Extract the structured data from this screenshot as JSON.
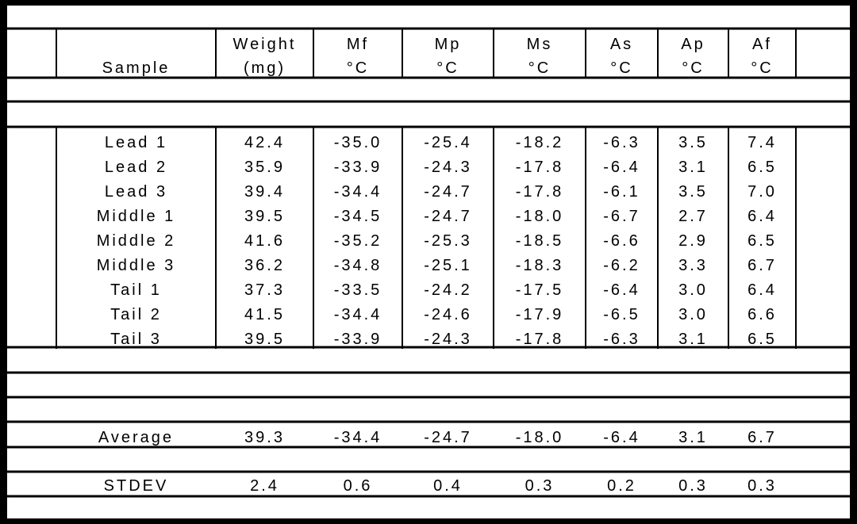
{
  "table": {
    "columns": [
      {
        "name": "sample",
        "label1": "",
        "label2": "Sample"
      },
      {
        "name": "weight",
        "label1": "Weight",
        "label2": "(mg)"
      },
      {
        "name": "mf",
        "label1": "Mf",
        "label2": "°C"
      },
      {
        "name": "mp",
        "label1": "Mp",
        "label2": "°C"
      },
      {
        "name": "ms",
        "label1": "Ms",
        "label2": "°C"
      },
      {
        "name": "as",
        "label1": "As",
        "label2": "°C"
      },
      {
        "name": "ap",
        "label1": "Ap",
        "label2": "°C"
      },
      {
        "name": "af",
        "label1": "Af",
        "label2": "°C"
      }
    ],
    "rows": [
      [
        "Lead 1",
        "42.4",
        "-35.0",
        "-25.4",
        "-18.2",
        "-6.3",
        "3.5",
        "7.4"
      ],
      [
        "Lead 2",
        "35.9",
        "-33.9",
        "-24.3",
        "-17.8",
        "-6.4",
        "3.1",
        "6.5"
      ],
      [
        "Lead 3",
        "39.4",
        "-34.4",
        "-24.7",
        "-17.8",
        "-6.1",
        "3.5",
        "7.0"
      ],
      [
        "Middle 1",
        "39.5",
        "-34.5",
        "-24.7",
        "-18.0",
        "-6.7",
        "2.7",
        "6.4"
      ],
      [
        "Middle 2",
        "41.6",
        "-35.2",
        "-25.3",
        "-18.5",
        "-6.6",
        "2.9",
        "6.5"
      ],
      [
        "Middle 3",
        "36.2",
        "-34.8",
        "-25.1",
        "-18.3",
        "-6.2",
        "3.3",
        "6.7"
      ],
      [
        "Tail 1",
        "37.3",
        "-33.5",
        "-24.2",
        "-17.5",
        "-6.4",
        "3.0",
        "6.4"
      ],
      [
        "Tail 2",
        "41.5",
        "-34.4",
        "-24.6",
        "-17.9",
        "-6.5",
        "3.0",
        "6.6"
      ],
      [
        "Tail 3",
        "39.5",
        "-33.9",
        "-24.3",
        "-17.8",
        "-6.3",
        "3.1",
        "6.5"
      ]
    ],
    "average": [
      "Average",
      "39.3",
      "-34.4",
      "-24.7",
      "-18.0",
      "-6.4",
      "3.1",
      "6.7"
    ],
    "stdev": [
      "STDEV",
      "2.4",
      "0.6",
      "0.4",
      "0.3",
      "0.2",
      "0.3",
      "0.3"
    ]
  }
}
